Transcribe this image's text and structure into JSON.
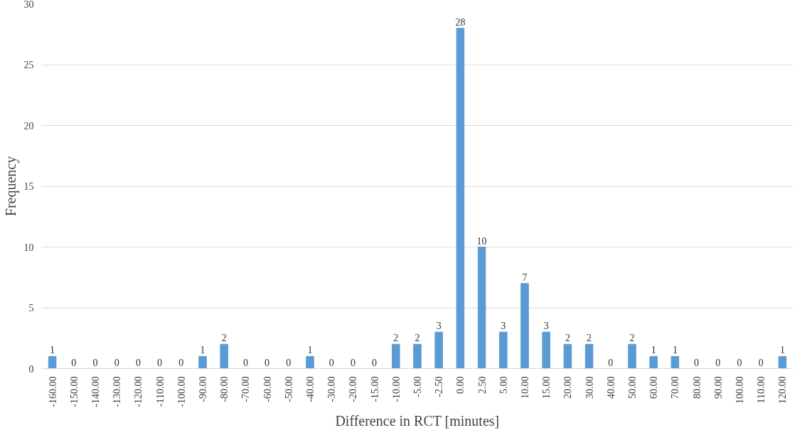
{
  "chart_data": {
    "type": "bar",
    "xlabel": "Difference in RCT [minutes]",
    "ylabel": "Frequency",
    "categories": [
      "-160.00",
      "-150.00",
      "-140.00",
      "-130.00",
      "-120.00",
      "-110.00",
      "-100.00",
      "-90.00",
      "-80.00",
      "-70.00",
      "-60.00",
      "-50.00",
      "-40.00",
      "-30.00",
      "-20.00",
      "-15.00",
      "-10.00",
      "-5.00",
      "-2.50",
      "0.00",
      "2.50",
      "5.00",
      "10.00",
      "15.00",
      "20.00",
      "30.00",
      "40.00",
      "50.00",
      "60.00",
      "70.00",
      "80.00",
      "90.00",
      "100.00",
      "110.00",
      "120.00"
    ],
    "values": [
      1,
      0,
      0,
      0,
      0,
      0,
      0,
      1,
      2,
      0,
      0,
      0,
      1,
      0,
      0,
      0,
      2,
      2,
      3,
      28,
      10,
      3,
      7,
      3,
      2,
      2,
      0,
      2,
      1,
      1,
      0,
      0,
      0,
      0,
      1
    ],
    "color": "#5b9bd5",
    "ylim": [
      0,
      30
    ],
    "yticks": [
      0,
      5,
      10,
      15,
      20,
      25,
      30
    ],
    "grid": "y",
    "data_labels": true
  }
}
